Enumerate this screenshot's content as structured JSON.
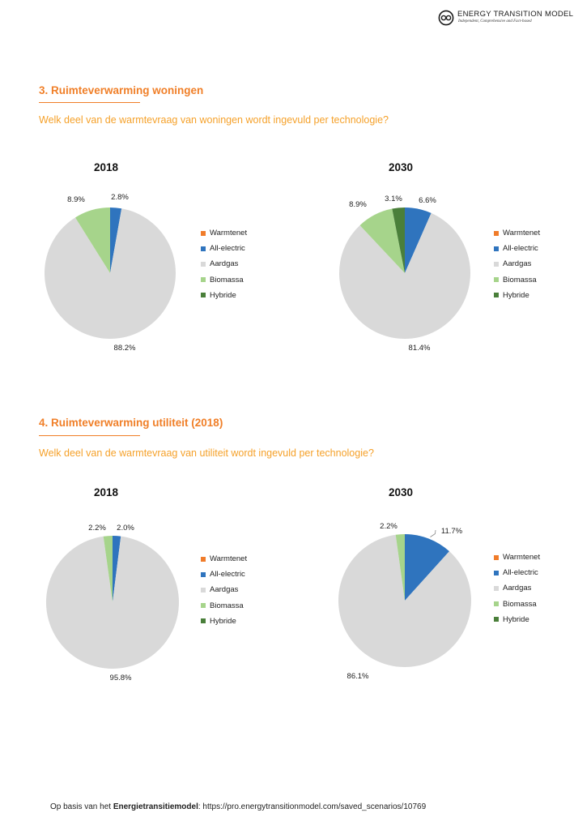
{
  "header": {
    "logo_title": "ENERGY TRANSITION MODEL",
    "logo_tagline": "Independent, Comprehensive and Fact-based"
  },
  "colors": {
    "Warmtenet": "#f07c2a",
    "All-electric": "#2f74be",
    "Aardgas": "#d9d9d9",
    "Biomassa": "#a6d48b",
    "Hybride": "#4a7f3a",
    "accent": "#f07f28"
  },
  "sections": [
    {
      "title": "3. Ruimteverwarming woningen",
      "question": "Welk deel van de warmtevraag van woningen wordt ingevuld per technologie?"
    },
    {
      "title": "4. Ruimteverwarming utiliteit (2018)",
      "question": "Welk deel van de warmtevraag van utiliteit wordt ingevuld per technologie?"
    }
  ],
  "legend": [
    "Warmtenet",
    "All-electric",
    "Aardgas",
    "Biomassa",
    "Hybride"
  ],
  "chart_data": [
    {
      "type": "pie",
      "section": 0,
      "title": "2018",
      "labels": [
        "Warmtenet",
        "All-electric",
        "Aardgas",
        "Biomassa",
        "Hybride"
      ],
      "values": [
        0,
        2.8,
        88.2,
        8.9,
        0
      ],
      "data_labels": [
        "",
        "2.8%",
        "88.2%",
        "8.9%",
        ""
      ]
    },
    {
      "type": "pie",
      "section": 0,
      "title": "2030",
      "labels": [
        "Warmtenet",
        "All-electric",
        "Aardgas",
        "Biomassa",
        "Hybride"
      ],
      "values": [
        0,
        6.6,
        81.4,
        8.9,
        3.1
      ],
      "data_labels": [
        "",
        "6.6%",
        "81.4%",
        "8.9%",
        "3.1%"
      ]
    },
    {
      "type": "pie",
      "section": 1,
      "title": "2018",
      "labels": [
        "Warmtenet",
        "All-electric",
        "Aardgas",
        "Biomassa",
        "Hybride"
      ],
      "values": [
        0,
        2.0,
        95.8,
        2.2,
        0
      ],
      "data_labels": [
        "",
        "2.0%",
        "95.8%",
        "2.2%",
        ""
      ]
    },
    {
      "type": "pie",
      "section": 1,
      "title": "2030",
      "labels": [
        "Warmtenet",
        "All-electric",
        "Aardgas",
        "Biomassa",
        "Hybride"
      ],
      "values": [
        0,
        11.7,
        86.1,
        2.2,
        0
      ],
      "data_labels": [
        "",
        "11.7%",
        "86.1%",
        "2.2%",
        ""
      ]
    }
  ],
  "footer": {
    "prefix": "Op basis van het ",
    "bold": "Energietransitiemodel",
    "suffix": ": https://pro.energytransitionmodel.com/saved_scenarios/10769"
  }
}
